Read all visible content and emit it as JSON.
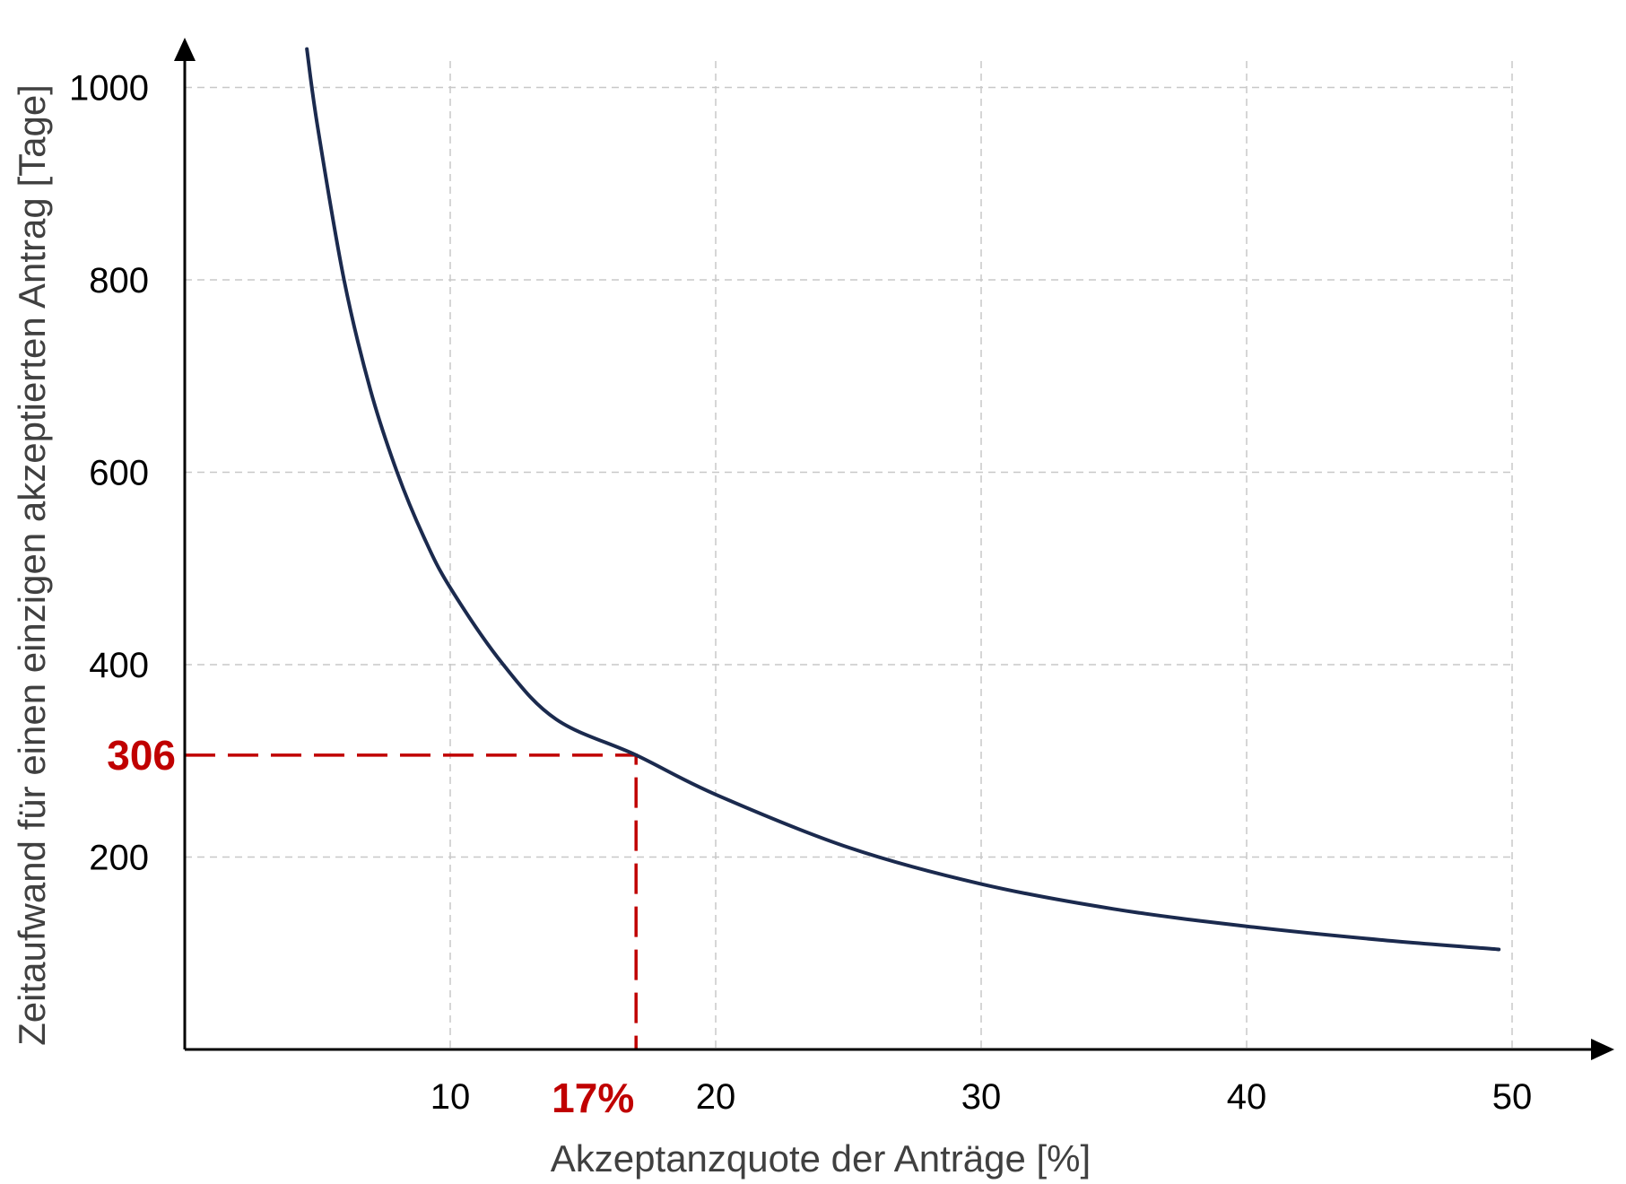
{
  "colors": {
    "curve": "#1b2a4e",
    "axis": "#000000",
    "grid": "#c8c8c8",
    "highlight": "#c00000",
    "axis_title": "#404040"
  },
  "chart_data": {
    "type": "line",
    "title": "",
    "xlabel": "Akzeptanzquote der Anträge [%]",
    "ylabel": "Zeitaufwand für einen einzigen akzeptierten Antrag [Tage]",
    "xlim": [
      0,
      55
    ],
    "ylim": [
      0,
      1100
    ],
    "x_ticks": [
      10,
      20,
      30,
      40,
      50
    ],
    "y_ticks": [
      200,
      400,
      600,
      800,
      1000
    ],
    "grid": true,
    "grid_style": "dashed",
    "legend": "none",
    "series": [
      {
        "x": [
          4.6,
          5,
          6,
          7,
          8,
          9,
          10,
          12,
          14,
          17,
          20,
          25,
          30,
          35,
          40,
          45,
          49.5
        ],
        "y": [
          1040,
          960,
          800,
          685,
          600,
          533,
          480,
          400,
          343,
          306,
          265,
          210,
          172,
          146,
          128,
          114,
          104
        ]
      }
    ],
    "annotations": [
      {
        "x": 17,
        "y": 306,
        "x_label": "17%",
        "y_label": "306"
      }
    ]
  }
}
